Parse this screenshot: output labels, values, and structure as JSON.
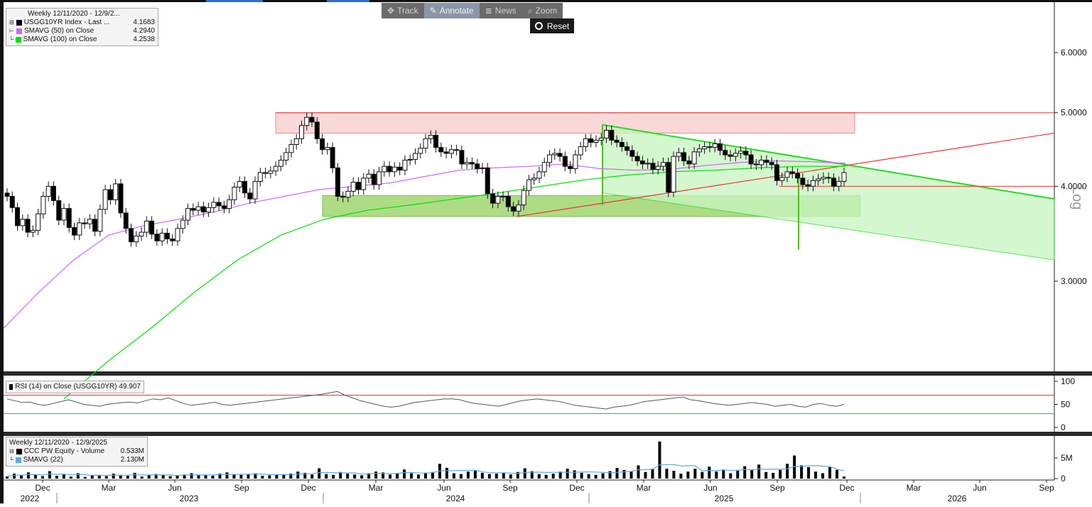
{
  "toolbar": {
    "track": "Track",
    "annotate": "Annotate",
    "news": "News",
    "zoom": "Zoom",
    "reset": "Reset"
  },
  "main_legend": {
    "title": "Weekly 12/11/2020 - 12/9/2...",
    "rows": [
      {
        "label": "USGG10YR Index - Last ...",
        "value": "4.1683",
        "color": "#000000"
      },
      {
        "label": "SMAVG (50)  on Close",
        "value": "4.2940",
        "color": "#cc66ff"
      },
      {
        "label": "SMAVG (100)  on Close",
        "value": "4.2538",
        "color": "#00e000"
      }
    ]
  },
  "rsi_legend": {
    "label": "RSI (14)  on Close (USGG10YR) 49.907"
  },
  "vol_legend": {
    "title": "Weekly 12/11/2020 - 12/9/2025",
    "rows": [
      {
        "label": "CCC PW Equity - Volume",
        "value": "0.533M",
        "color": "#000000"
      },
      {
        "label": "SMAVG (22)",
        "value": "2.130M",
        "color": "#5fa8e8"
      }
    ]
  },
  "axis_side_label": "Log",
  "chart_data": [
    {
      "type": "candlestick",
      "scale": "log",
      "y_ticks": [
        "6.0000",
        "5.0000",
        "4.0000",
        "3.0000"
      ],
      "x_month_labels": [
        "Dec",
        "Mar",
        "Jun",
        "Sep",
        "Dec",
        "Mar",
        "Jun",
        "Sep",
        "Dec",
        "Mar",
        "Jun",
        "Sep",
        "Dec",
        "Mar",
        "Jun",
        "Sep"
      ],
      "x_year_labels": [
        "2022",
        "2023",
        "2024",
        "2025",
        "2026"
      ],
      "close_series": [
        3.88,
        3.75,
        3.55,
        3.62,
        3.48,
        3.5,
        3.68,
        3.88,
        4.0,
        3.83,
        3.61,
        3.74,
        3.53,
        3.45,
        3.58,
        3.57,
        3.62,
        3.49,
        3.73,
        3.96,
        3.84,
        4.03,
        3.69,
        3.52,
        3.38,
        3.44,
        3.48,
        3.6,
        3.46,
        3.39,
        3.47,
        3.41,
        3.39,
        3.52,
        3.61,
        3.74,
        3.72,
        3.76,
        3.7,
        3.75,
        3.81,
        3.77,
        3.74,
        3.84,
        3.99,
        4.06,
        3.92,
        3.85,
        4.06,
        4.17,
        4.16,
        4.19,
        4.25,
        4.33,
        4.43,
        4.54,
        4.62,
        4.81,
        4.93,
        4.86,
        4.62,
        4.47,
        4.5,
        4.23,
        3.88,
        3.87,
        3.94,
        4.05,
        3.96,
        4.1,
        4.15,
        4.02,
        4.18,
        4.25,
        4.18,
        4.24,
        4.2,
        4.33,
        4.34,
        4.42,
        4.49,
        4.62,
        4.67,
        4.5,
        4.44,
        4.42,
        4.47,
        4.46,
        4.28,
        4.3,
        4.28,
        4.22,
        4.23,
        3.91,
        3.8,
        3.88,
        3.88,
        3.76,
        3.71,
        3.78,
        3.95,
        4.08,
        4.1,
        4.18,
        4.3,
        4.4,
        4.42,
        4.38,
        4.25,
        4.22,
        4.4,
        4.51,
        4.62,
        4.57,
        4.6,
        4.63,
        4.74,
        4.6,
        4.57,
        4.51,
        4.46,
        4.38,
        4.32,
        4.28,
        4.29,
        4.21,
        4.25,
        4.3,
        3.93,
        4.38,
        4.43,
        4.32,
        4.28,
        4.44,
        4.48,
        4.51,
        4.5,
        4.55,
        4.46,
        4.4,
        4.38,
        4.42,
        4.45,
        4.4,
        4.28,
        4.27,
        4.33,
        4.3,
        4.27,
        4.07,
        4.11,
        4.18,
        4.16,
        4.1,
        4.02,
        4.0,
        4.07,
        4.09,
        4.11,
        4.1,
        4.0,
        4.06,
        4.17
      ],
      "sma50": [
        2.6,
        2.9,
        3.2,
        3.45,
        3.55,
        3.62,
        3.7,
        3.8,
        3.88,
        3.96,
        4.0,
        4.04,
        4.12,
        4.2,
        4.23,
        4.25,
        4.28,
        4.22,
        4.2,
        4.21,
        4.26,
        4.3,
        4.32,
        4.31,
        4.29
      ],
      "sma100": [
        2.1,
        2.35,
        2.6,
        2.9,
        3.2,
        3.45,
        3.62,
        3.72,
        3.78,
        3.85,
        3.92,
        4.0,
        4.08,
        4.14,
        4.18,
        4.2,
        4.23,
        4.25,
        4.25
      ],
      "annotations": {
        "resistance_zone": [
          4.7,
          5.0
        ],
        "support_zone": [
          3.65,
          3.89
        ],
        "horizontal_line": 4.0
      }
    },
    {
      "type": "line",
      "name": "RSI (14)",
      "y_ticks": [
        "100",
        "50",
        "0"
      ],
      "upper": 70,
      "lower": 30,
      "values": [
        62,
        58,
        54,
        55,
        50,
        48,
        52,
        56,
        60,
        55,
        50,
        48,
        46,
        50,
        52,
        54,
        55,
        53,
        58,
        62,
        60,
        64,
        58,
        52,
        48,
        50,
        52,
        55,
        50,
        48,
        50,
        52,
        54,
        56,
        58,
        60,
        62,
        64,
        66,
        68,
        70,
        72,
        75,
        78,
        70,
        64,
        58,
        54,
        50,
        46,
        44,
        46,
        50,
        54,
        56,
        58,
        60,
        62,
        62,
        60,
        55,
        52,
        50,
        48,
        46,
        50,
        54,
        58,
        60,
        62,
        60,
        58,
        56,
        52,
        48,
        46,
        44,
        42,
        40,
        44,
        46,
        48,
        52,
        56,
        58,
        60,
        62,
        64,
        66,
        60,
        58,
        55,
        52,
        50,
        48,
        50,
        52,
        54,
        52,
        50,
        46,
        48,
        50,
        46,
        44,
        50,
        52,
        48,
        46,
        50
      ]
    },
    {
      "type": "bar",
      "name": "Volume",
      "y_ticks": [
        "5M",
        "0"
      ],
      "values": [
        0.5,
        1.2,
        0.8,
        1.5,
        0.9,
        0.6,
        1.8,
        0.7,
        1.0,
        0.5,
        1.3,
        0.4,
        0.9,
        0.8,
        0.6,
        1.2,
        0.9,
        0.7,
        1.4,
        0.5,
        0.8,
        1.1,
        0.9,
        0.6,
        0.7,
        1.0,
        1.3,
        0.8,
        0.9,
        0.7,
        1.2,
        1.5,
        1.0,
        0.9,
        1.1,
        1.3,
        0.7,
        0.8,
        1.0,
        0.9,
        1.2,
        1.7,
        1.4,
        1.0,
        2.5,
        1.1,
        0.9,
        1.6,
        1.2,
        1.0,
        0.8,
        1.3,
        1.7,
        1.5,
        1.0,
        1.2,
        2.2,
        1.3,
        1.0,
        1.4,
        1.6,
        3.6,
        2.6,
        1.3,
        1.1,
        1.7,
        1.9,
        1.4,
        1.1,
        1.2,
        1.3,
        1.0,
        1.6,
        2.5,
        1.8,
        1.1,
        0.9,
        1.2,
        1.7,
        2.4,
        2.0,
        1.4,
        1.1,
        0.9,
        1.3,
        1.8,
        2.6,
        2.1,
        1.7,
        3.2,
        1.6,
        2.4,
        9.0,
        2.4,
        1.9,
        1.2,
        1.7,
        2.4,
        1.6,
        2.9,
        1.7,
        2.2,
        1.3,
        2.1,
        3.0,
        2.2,
        3.4,
        1.6,
        1.4,
        2.1,
        3.6,
        5.6,
        3.2,
        2.8,
        1.7,
        1.3,
        2.8,
        2.1,
        0.5
      ]
    }
  ]
}
